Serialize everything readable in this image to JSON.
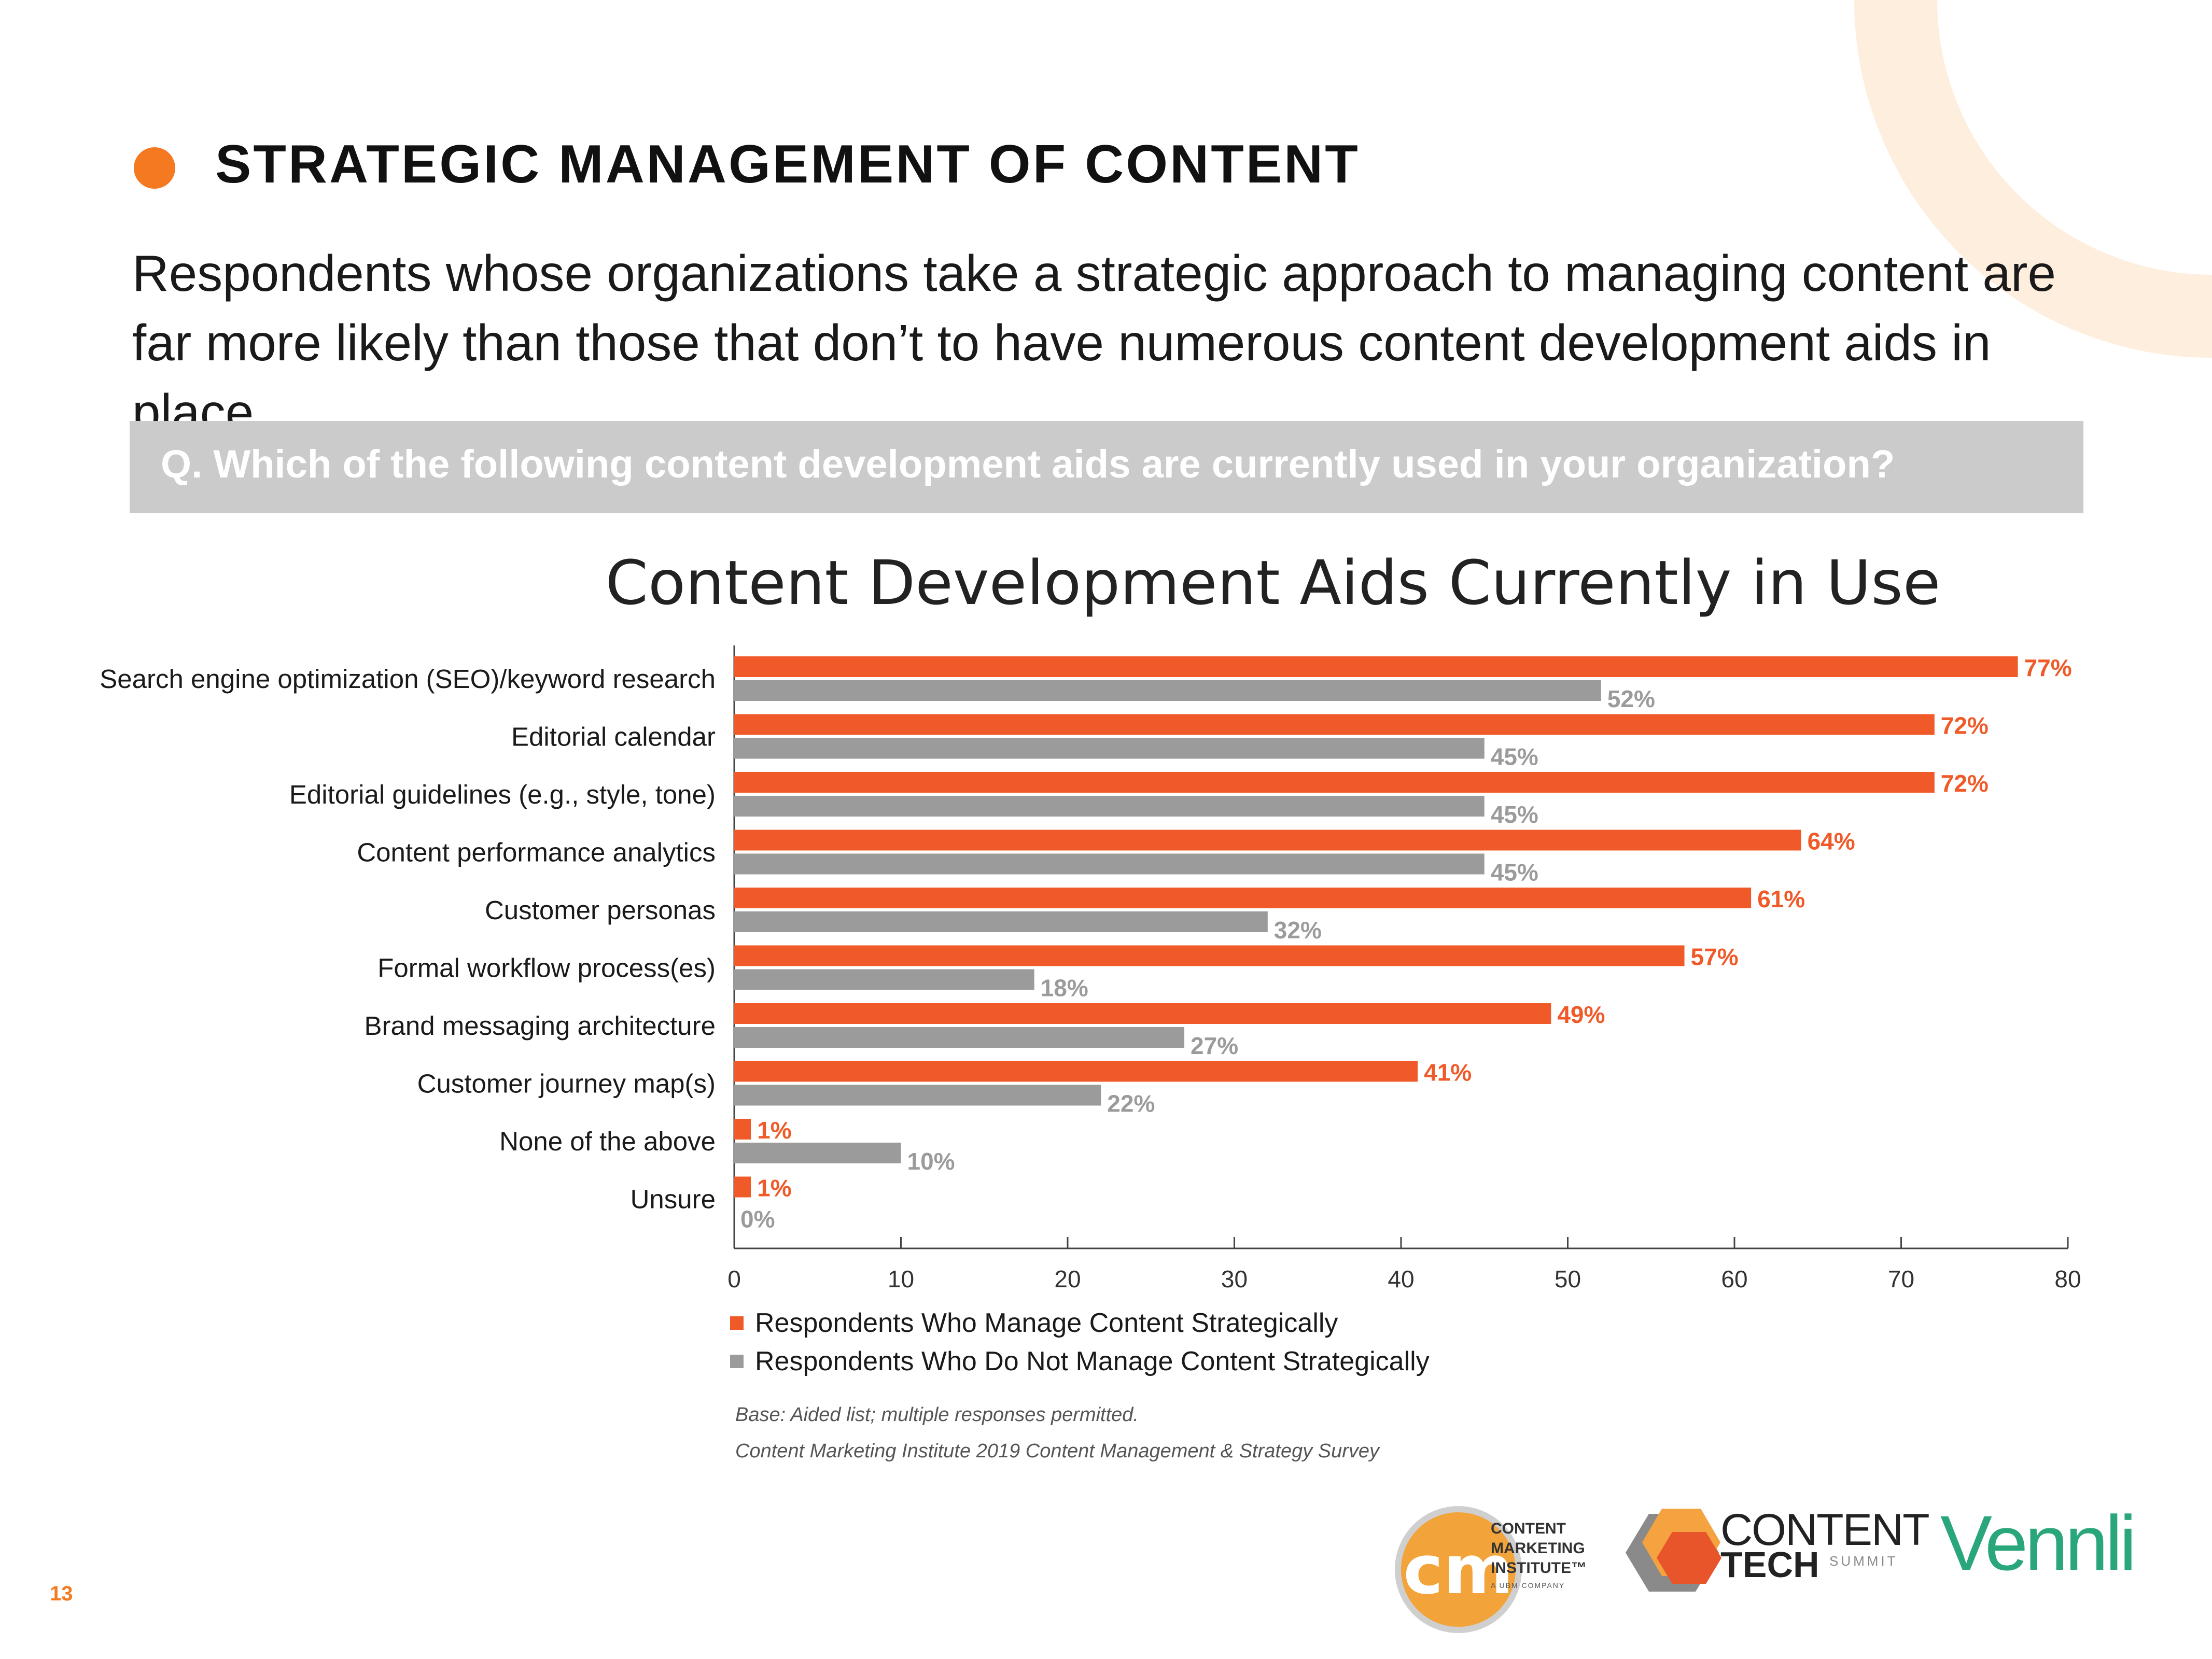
{
  "section_title": "STRATEGIC MANAGEMENT OF CONTENT",
  "intro_text": "Respondents whose organizations take a strategic approach to managing content are far more likely than those that don’t to have numerous content development aids in place.",
  "question": "Q. Which of the following content development aids are currently used in your organization?",
  "colors": {
    "accent": "#f47920",
    "series_strategic": "#f05a28",
    "series_not": "#9b9b9b",
    "question_bg": "#cbcbcb",
    "vennli": "#2aa67b"
  },
  "chart_data": {
    "type": "bar",
    "orientation": "horizontal",
    "title": "Content Development Aids Currently in Use",
    "categories": [
      "Search engine optimization (SEO)/keyword research",
      "Editorial calendar",
      "Editorial guidelines (e.g., style, tone)",
      "Content performance analytics",
      "Customer personas",
      "Formal workflow process(es)",
      "Brand messaging architecture",
      "Customer journey map(s)",
      "None of the above",
      "Unsure"
    ],
    "series": [
      {
        "name": "Respondents Who Manage Content Strategically",
        "color": "#f05a28",
        "values": [
          77,
          72,
          72,
          64,
          61,
          57,
          49,
          41,
          1,
          1
        ]
      },
      {
        "name": "Respondents Who Do Not Manage Content Strategically",
        "color": "#9b9b9b",
        "values": [
          52,
          45,
          45,
          45,
          32,
          18,
          27,
          22,
          10,
          0
        ]
      }
    ],
    "value_suffix": "%",
    "xlim": [
      0,
      80
    ],
    "xticks": [
      0,
      10,
      20,
      30,
      40,
      50,
      60,
      70,
      80
    ],
    "legend_position": "bottom-left"
  },
  "notes": {
    "base": "Base: Aided list; multiple responses permitted.",
    "source": "Content Marketing Institute 2019 Content Management & Strategy Survey"
  },
  "page_number": "13",
  "logos": {
    "cmi_mark": "cm",
    "cmi_lines": [
      "CONTENT",
      "MARKETING",
      "INSTITUTE™"
    ],
    "cmi_sub": "A UBM COMPANY",
    "content_tech_1": "CONTENT",
    "content_tech_2": "TECH",
    "content_tech_3": "SUMMIT",
    "vennli": "Vennli"
  }
}
